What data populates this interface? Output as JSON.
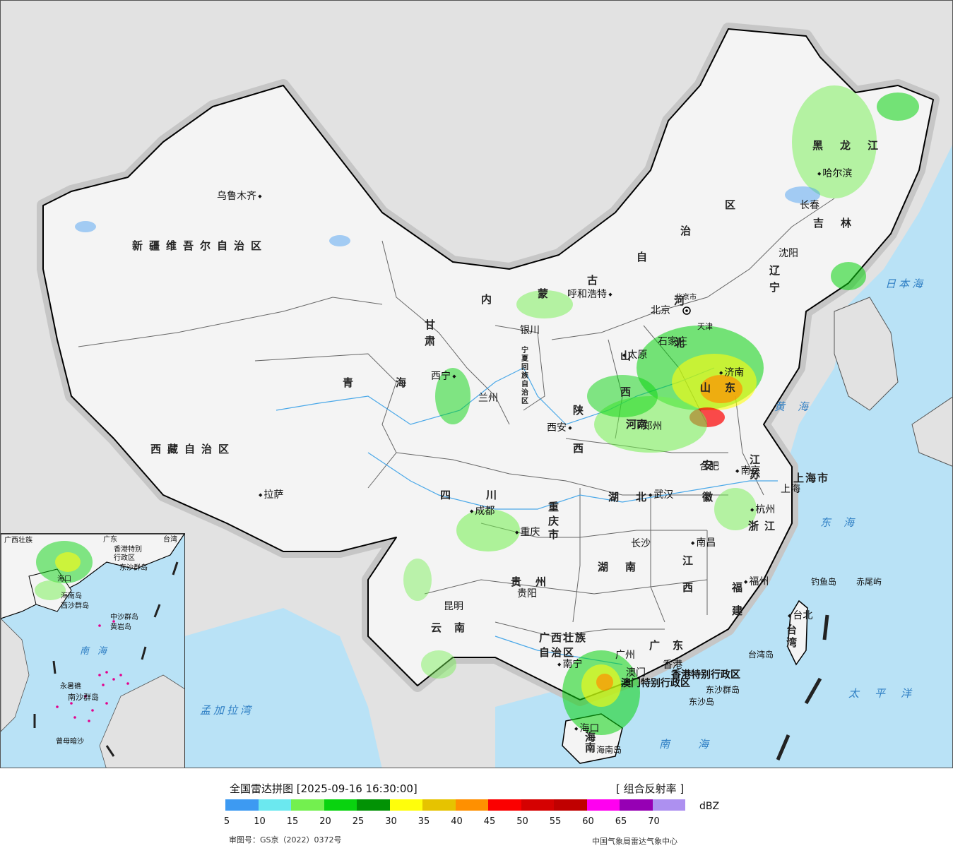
{
  "map": {
    "cities": {
      "urumqi": "乌鲁木齐",
      "lhasa": "拉萨",
      "xining": "西宁",
      "lanzhou": "兰州",
      "yinchuan": "银川",
      "hohhot": "呼和浩特",
      "beijing": "北京",
      "beijing_small": "北京市",
      "tianjin": "天津",
      "shijiazhuang": "石家庄",
      "taiyuan": "太原",
      "jinan": "济南",
      "zhengzhou": "郑州",
      "xian": "西安",
      "chengdu": "成都",
      "chongqing": "重庆",
      "wuhan": "武汉",
      "hefei": "合肥",
      "nanjing": "南京",
      "shanghai": "上海",
      "shanghai_city": "上海市",
      "hangzhou": "杭州",
      "nanchang": "南昌",
      "changsha": "长沙",
      "guiyang": "贵阳",
      "kunming": "昆明",
      "nanning": "南宁",
      "guangzhou": "广州",
      "hongkong": "香港",
      "macau": "澳门",
      "haikou": "海口",
      "fuzhou": "福州",
      "taipei": "台北",
      "shenyang": "沈阳",
      "changchun": "长春",
      "harbin": "哈尔滨"
    },
    "provinces": {
      "xinjiang": "新疆维吾尔自治区",
      "tibet": "西藏自治区",
      "qinghai": "青海",
      "gansu": "甘肃",
      "ningxia": "宁夏回族自治区",
      "nei_mongol_1": "内",
      "nei_mongol_2": "蒙",
      "nei_mongol_3": "古",
      "nei_mongol_4": "自",
      "nei_mongol_5": "治",
      "nei_mongol_6": "区",
      "heilongjiang": "黑龙江",
      "jilin": "吉林",
      "liaoning": "辽宁",
      "hebei": "河北",
      "shanxi": "山西",
      "shandong": "山东",
      "henan": "河南",
      "shaanxi": "陕西",
      "sichuan": "四川",
      "chongqing_city": "重庆市",
      "hubei": "湖北",
      "hunan": "湖南",
      "anhui": "安徽",
      "jiangsu": "江苏",
      "zhejiang": "浙江",
      "jiangxi": "江西",
      "fujian": "福建",
      "guizhou": "贵州",
      "yunnan": "云南",
      "guangxi": "广西壮族自治区",
      "guangdong": "广东",
      "hainan": "海南",
      "taiwan": "台湾",
      "hk_sar": "香港特别行政区",
      "macau_sar": "澳门特别行政区"
    },
    "seas": {
      "sea_of_japan": "日本海",
      "yellow_sea": "黄海",
      "east_sea": "东海",
      "pacific": "太平洋",
      "south_sea": "南海",
      "bay_of_bengal": "孟加拉湾"
    },
    "islands": {
      "diaoyu": "钓鱼岛",
      "chiwei": "赤尾屿",
      "taiwan_island": "台湾岛",
      "dongsha_islands": "东沙群岛",
      "dongsha_island": "东沙岛",
      "hainan_island": "海南岛",
      "tianjin_abbr": "天津"
    },
    "inset": {
      "south_sea": "南海",
      "xisha": "西沙群岛",
      "zhongsha": "中沙群岛",
      "huangyan": "黄岩岛",
      "nansha": "南沙群岛",
      "yongshu": "永暑礁",
      "zengmu": "曾母暗沙",
      "guangxi": "广西壮族",
      "guangdong": "广东",
      "hk": "香港特别",
      "admin": "行政区",
      "dongsha": "东沙群岛",
      "haikou": "海口",
      "hainan": "海南岛",
      "taiwan": "台湾"
    },
    "colors": {
      "land": "#f4f4f4",
      "outside": "#e2e2e2",
      "ocean": "#b9e2f6",
      "border": "#000000",
      "river": "#4aa8e8"
    }
  },
  "legend": {
    "title": "全国雷达拼图 [2025-09-16 16:30:00]",
    "product": "[ 组合反射率 ]",
    "unit": "dBZ",
    "approval": "审图号：GS京（2022）0372号",
    "source": "中国气象局雷达气象中心",
    "bins": [
      {
        "color": "#3d9af2"
      },
      {
        "color": "#6be8ef"
      },
      {
        "color": "#73f04f"
      },
      {
        "color": "#09d30f"
      },
      {
        "color": "#029205"
      },
      {
        "color": "#fffe0b"
      },
      {
        "color": "#e6c300"
      },
      {
        "color": "#ff9000"
      },
      {
        "color": "#fb0000"
      },
      {
        "color": "#d50101"
      },
      {
        "color": "#c00000"
      },
      {
        "color": "#ff00f0"
      },
      {
        "color": "#9600b4"
      },
      {
        "color": "#ad90f0"
      }
    ],
    "ticks": [
      "5",
      "10",
      "15",
      "20",
      "25",
      "30",
      "35",
      "40",
      "45",
      "50",
      "55",
      "60",
      "65",
      "70"
    ]
  }
}
